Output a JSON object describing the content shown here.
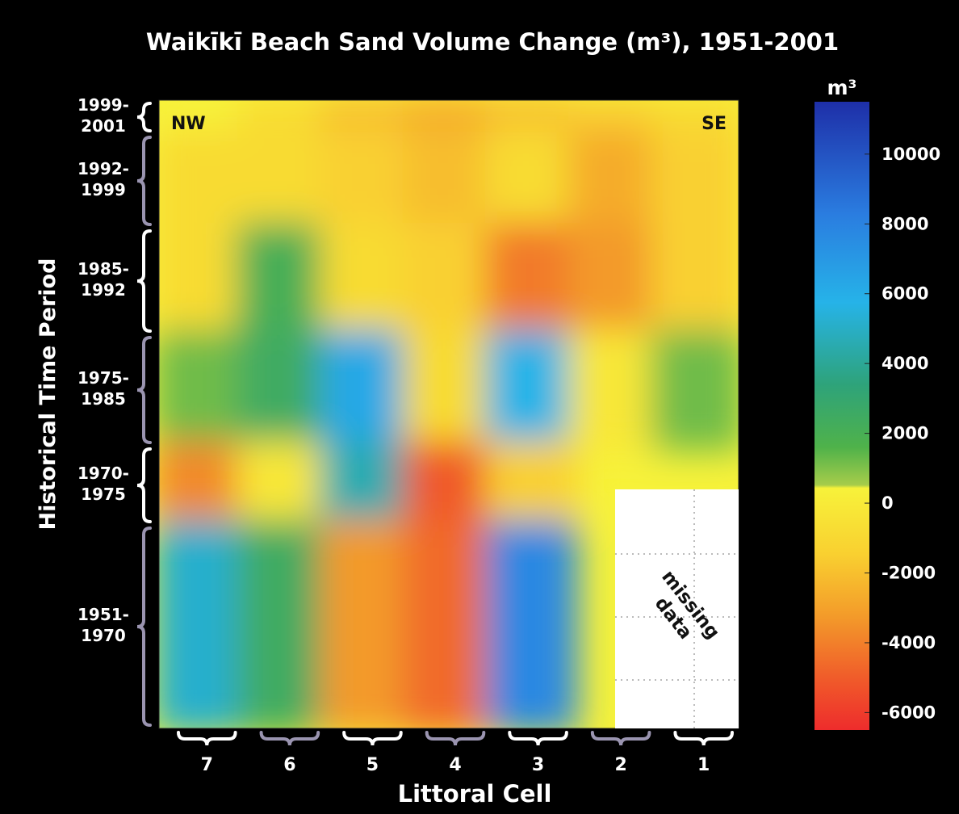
{
  "chart_data": {
    "type": "heatmap",
    "title": "Waikīkī Beach Sand Volume Change (m³), 1951-2001",
    "xlabel": "Littoral Cell",
    "ylabel": "Historical Time Period",
    "x_categories": [
      "7",
      "6",
      "5",
      "4",
      "3",
      "2",
      "1"
    ],
    "y_categories": [
      "1999-2001",
      "1992-1999",
      "1985-1992",
      "1975-1985",
      "1970-1975",
      "1951-1970"
    ],
    "y_label_lines": [
      [
        "1999-",
        "2001"
      ],
      [
        "1992-",
        "1999"
      ],
      [
        "1985-",
        "1992"
      ],
      [
        "1975-",
        "1985"
      ],
      [
        "1970-",
        "1975"
      ],
      [
        "1951-",
        "1970"
      ]
    ],
    "values": [
      [
        500,
        -500,
        -1500,
        -2000,
        -1500,
        -1000,
        -500
      ],
      [
        -500,
        -500,
        -1000,
        -1500,
        -500,
        -2000,
        -1000
      ],
      [
        -500,
        2500,
        -500,
        -1000,
        -3500,
        -2500,
        -1000
      ],
      [
        1500,
        3000,
        6500,
        -500,
        6000,
        0,
        1500
      ],
      [
        -3000,
        0,
        5000,
        -4500,
        -1000,
        null,
        null
      ],
      [
        5500,
        3000,
        -2500,
        -4000,
        8000,
        null,
        null
      ]
    ],
    "colorbar": {
      "label": "m³",
      "ticks": [
        10000,
        8000,
        6000,
        4000,
        2000,
        0,
        -2000,
        -4000,
        -6000
      ],
      "range": [
        -6500,
        11500
      ]
    },
    "annotations": {
      "nw": "NW",
      "se": "SE",
      "missing_line1": "missing",
      "missing_line2": "data"
    }
  }
}
